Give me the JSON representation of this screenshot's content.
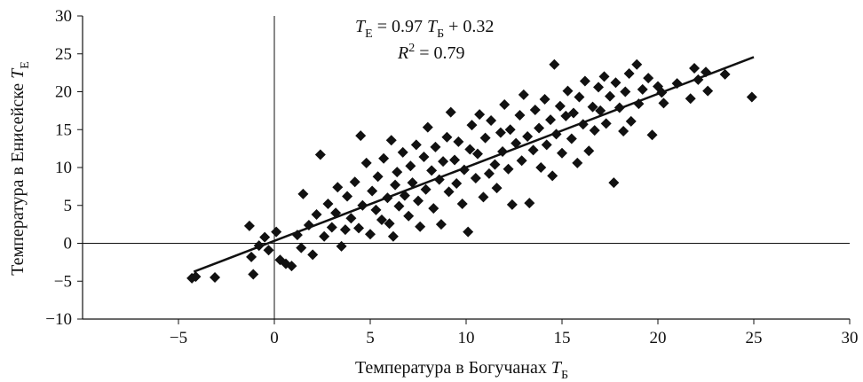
{
  "chart_data": {
    "type": "scatter",
    "x_axis": {
      "label_main": "Температура в Богучанах ",
      "label_var": "T",
      "label_sub": "Б",
      "range": [
        -10,
        30
      ],
      "ticks": [
        -5,
        0,
        5,
        10,
        15,
        20,
        25,
        30
      ],
      "tick_labels": [
        "−5",
        "0",
        "5",
        "10",
        "15",
        "20",
        "25",
        "30"
      ]
    },
    "y_axis": {
      "label_main": "Температура в Енисейске ",
      "label_var": "T",
      "label_sub": "E",
      "range": [
        -10,
        30
      ],
      "ticks": [
        -10,
        -5,
        0,
        5,
        10,
        15,
        20,
        25,
        30
      ],
      "tick_labels": [
        "−10",
        "−5",
        "0",
        "5",
        "10",
        "15",
        "20",
        "25",
        "30"
      ]
    },
    "zero_lines": true,
    "grid": false,
    "legend": "none",
    "marker": "diamond",
    "marker_color": "#111111",
    "trendline": {
      "slope": 0.97,
      "intercept": 0.32,
      "x_range": [
        -4.2,
        25
      ],
      "color": "#111111",
      "eq_var1": "T",
      "eq_sub1": "E",
      "eq_mid": " = 0.97 ",
      "eq_var2": "T",
      "eq_sub2": "Б",
      "eq_tail": " + 0.32",
      "r2_var": "R",
      "r2_sup": "2",
      "r2_tail": " = 0.79"
    },
    "points": [
      [
        -4.3,
        -4.6
      ],
      [
        -4.1,
        -4.4
      ],
      [
        -3.1,
        -4.5
      ],
      [
        -1.3,
        2.3
      ],
      [
        -1.1,
        -4.1
      ],
      [
        -1.2,
        -1.8
      ],
      [
        -0.8,
        -0.3
      ],
      [
        -0.5,
        0.8
      ],
      [
        -0.3,
        -0.9
      ],
      [
        0.1,
        1.5
      ],
      [
        0.3,
        -2.2
      ],
      [
        0.6,
        -2.7
      ],
      [
        0.9,
        -3.0
      ],
      [
        1.2,
        1.1
      ],
      [
        1.4,
        -0.6
      ],
      [
        1.5,
        6.5
      ],
      [
        1.8,
        2.4
      ],
      [
        2.0,
        -1.5
      ],
      [
        2.2,
        3.8
      ],
      [
        2.4,
        11.7
      ],
      [
        2.6,
        0.9
      ],
      [
        2.8,
        5.2
      ],
      [
        3.0,
        2.1
      ],
      [
        3.2,
        4.0
      ],
      [
        3.3,
        7.4
      ],
      [
        3.5,
        -0.4
      ],
      [
        3.7,
        1.8
      ],
      [
        3.8,
        6.2
      ],
      [
        4.0,
        3.3
      ],
      [
        4.2,
        8.1
      ],
      [
        4.4,
        2.0
      ],
      [
        4.5,
        14.2
      ],
      [
        4.6,
        5.0
      ],
      [
        4.8,
        10.6
      ],
      [
        5.0,
        1.2
      ],
      [
        5.1,
        6.9
      ],
      [
        5.3,
        4.4
      ],
      [
        5.4,
        8.8
      ],
      [
        5.6,
        3.1
      ],
      [
        5.7,
        11.2
      ],
      [
        5.9,
        6.0
      ],
      [
        6.0,
        2.6
      ],
      [
        6.1,
        13.6
      ],
      [
        6.2,
        0.9
      ],
      [
        6.3,
        7.7
      ],
      [
        6.4,
        9.4
      ],
      [
        6.5,
        4.9
      ],
      [
        6.7,
        12.0
      ],
      [
        6.8,
        6.3
      ],
      [
        7.0,
        3.6
      ],
      [
        7.1,
        10.2
      ],
      [
        7.2,
        8.0
      ],
      [
        7.4,
        13.0
      ],
      [
        7.5,
        5.6
      ],
      [
        7.6,
        2.2
      ],
      [
        7.8,
        11.4
      ],
      [
        7.9,
        7.1
      ],
      [
        8.0,
        15.3
      ],
      [
        8.2,
        9.6
      ],
      [
        8.3,
        4.6
      ],
      [
        8.4,
        12.7
      ],
      [
        8.6,
        8.4
      ],
      [
        8.7,
        2.5
      ],
      [
        8.8,
        10.8
      ],
      [
        9.0,
        14.0
      ],
      [
        9.1,
        6.8
      ],
      [
        9.2,
        17.3
      ],
      [
        9.4,
        11.0
      ],
      [
        9.5,
        7.9
      ],
      [
        9.6,
        13.4
      ],
      [
        9.8,
        5.2
      ],
      [
        9.9,
        9.7
      ],
      [
        10.1,
        1.5
      ],
      [
        10.2,
        12.4
      ],
      [
        10.3,
        15.6
      ],
      [
        10.5,
        8.6
      ],
      [
        10.6,
        11.8
      ],
      [
        10.7,
        17.0
      ],
      [
        10.9,
        6.1
      ],
      [
        11.0,
        13.9
      ],
      [
        11.2,
        9.2
      ],
      [
        11.3,
        16.2
      ],
      [
        11.5,
        10.4
      ],
      [
        11.6,
        7.3
      ],
      [
        11.8,
        14.6
      ],
      [
        11.9,
        12.1
      ],
      [
        12.0,
        18.3
      ],
      [
        12.2,
        9.8
      ],
      [
        12.3,
        15.0
      ],
      [
        12.4,
        5.1
      ],
      [
        12.6,
        13.2
      ],
      [
        12.8,
        16.9
      ],
      [
        12.9,
        10.9
      ],
      [
        13.0,
        19.6
      ],
      [
        13.2,
        14.1
      ],
      [
        13.3,
        5.3
      ],
      [
        13.5,
        12.3
      ],
      [
        13.6,
        17.6
      ],
      [
        13.8,
        15.2
      ],
      [
        13.9,
        10.0
      ],
      [
        14.1,
        19.0
      ],
      [
        14.2,
        13.0
      ],
      [
        14.4,
        16.3
      ],
      [
        14.5,
        8.9
      ],
      [
        14.6,
        23.6
      ],
      [
        14.7,
        14.4
      ],
      [
        14.9,
        18.1
      ],
      [
        15.0,
        11.9
      ],
      [
        15.2,
        16.8
      ],
      [
        15.3,
        20.1
      ],
      [
        15.5,
        13.8
      ],
      [
        15.6,
        17.2
      ],
      [
        15.8,
        10.6
      ],
      [
        15.9,
        19.3
      ],
      [
        16.1,
        15.7
      ],
      [
        16.2,
        21.4
      ],
      [
        16.4,
        12.2
      ],
      [
        16.6,
        18.0
      ],
      [
        16.7,
        14.9
      ],
      [
        16.9,
        20.6
      ],
      [
        17.0,
        17.5
      ],
      [
        17.2,
        22.0
      ],
      [
        17.3,
        15.8
      ],
      [
        17.5,
        19.4
      ],
      [
        17.7,
        8.0
      ],
      [
        17.8,
        21.2
      ],
      [
        18.0,
        17.9
      ],
      [
        18.2,
        14.8
      ],
      [
        18.3,
        20.0
      ],
      [
        18.5,
        22.4
      ],
      [
        18.6,
        16.1
      ],
      [
        18.9,
        23.6
      ],
      [
        19.0,
        18.4
      ],
      [
        19.2,
        20.3
      ],
      [
        19.5,
        21.8
      ],
      [
        19.7,
        14.3
      ],
      [
        20.0,
        20.7
      ],
      [
        20.2,
        19.9
      ],
      [
        20.3,
        18.5
      ],
      [
        21.0,
        21.1
      ],
      [
        21.7,
        19.1
      ],
      [
        21.9,
        23.1
      ],
      [
        22.1,
        21.6
      ],
      [
        22.5,
        22.6
      ],
      [
        22.6,
        20.1
      ],
      [
        23.5,
        22.3
      ],
      [
        24.9,
        19.3
      ]
    ]
  }
}
